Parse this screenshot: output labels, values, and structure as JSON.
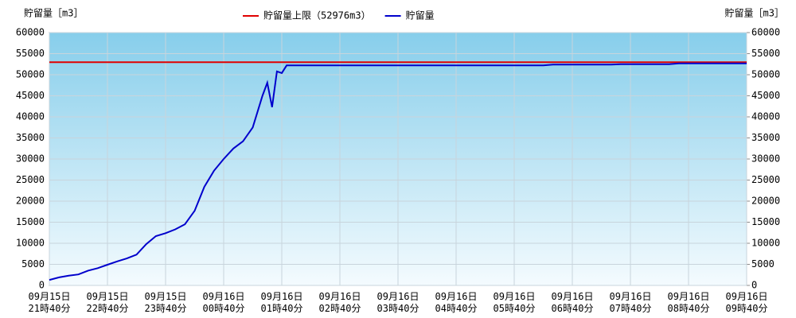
{
  "chart_data": {
    "type": "line",
    "y_label": "貯留量［m3］",
    "y2_label": "貯留量［m3］",
    "limit": {
      "name": "貯留量上限（52976m3）",
      "value": 52976,
      "color": "#e00000"
    },
    "series": [
      {
        "name": "貯留量",
        "color": "#0000cc",
        "x": [
          "09月15日 21時40分",
          "09月15日 21時50分",
          "09月15日 22時00分",
          "09月15日 22時10分",
          "09月15日 22時20分",
          "09月15日 22時30分",
          "09月15日 22時40分",
          "09月15日 22時50分",
          "09月15日 23時00分",
          "09月15日 23時10分",
          "09月15日 23時20分",
          "09月15日 23時30分",
          "09月15日 23時40分",
          "09月15日 23時50分",
          "09月16日 00時00分",
          "09月16日 00時10分",
          "09月16日 00時20分",
          "09月16日 00時30分",
          "09月16日 00時40分",
          "09月16日 00時50分",
          "09月16日 01時00分",
          "09月16日 01時10分",
          "09月16日 01時20分",
          "09月16日 01時25分",
          "09月16日 01時30分",
          "09月16日 01時35分",
          "09月16日 01時40分",
          "09月16日 01時45分",
          "09月16日 06時10分",
          "09月16日 06時20分",
          "09月16日 07時20分",
          "09月16日 07時30分",
          "09月16日 08時20分",
          "09月16日 08時30分",
          "09月16日 09時40分"
        ],
        "values": [
          1300,
          1900,
          2300,
          2600,
          3500,
          4100,
          4900,
          5700,
          6400,
          7300,
          9800,
          11700,
          12400,
          13300,
          14500,
          17700,
          23400,
          27200,
          30000,
          32500,
          34200,
          37500,
          45000,
          48100,
          42300,
          50800,
          50400,
          52200,
          52200,
          52400,
          52400,
          52500,
          52500,
          52700,
          52700
        ]
      }
    ],
    "xlim": [
      "09月15日 21時40分",
      "09月16日 09時40分"
    ],
    "xticks": [
      "09月15日 21時40分",
      "09月15日 22時40分",
      "09月15日 23時40分",
      "09月16日 00時40分",
      "09月16日 01時40分",
      "09月16日 02時40分",
      "09月16日 03時40分",
      "09月16日 04時40分",
      "09月16日 05時40分",
      "09月16日 06時40分",
      "09月16日 07時40分",
      "09月16日 08時40分",
      "09月16日 09時40分"
    ],
    "ylim": [
      0,
      60000
    ],
    "yticks": [
      0,
      5000,
      10000,
      15000,
      20000,
      25000,
      30000,
      35000,
      40000,
      45000,
      50000,
      55000,
      60000
    ],
    "y2lim": [
      0,
      60000
    ],
    "y2ticks": [
      0,
      5000,
      10000,
      15000,
      20000,
      25000,
      30000,
      35000,
      40000,
      45000,
      50000,
      55000,
      60000
    ],
    "grid": true
  }
}
